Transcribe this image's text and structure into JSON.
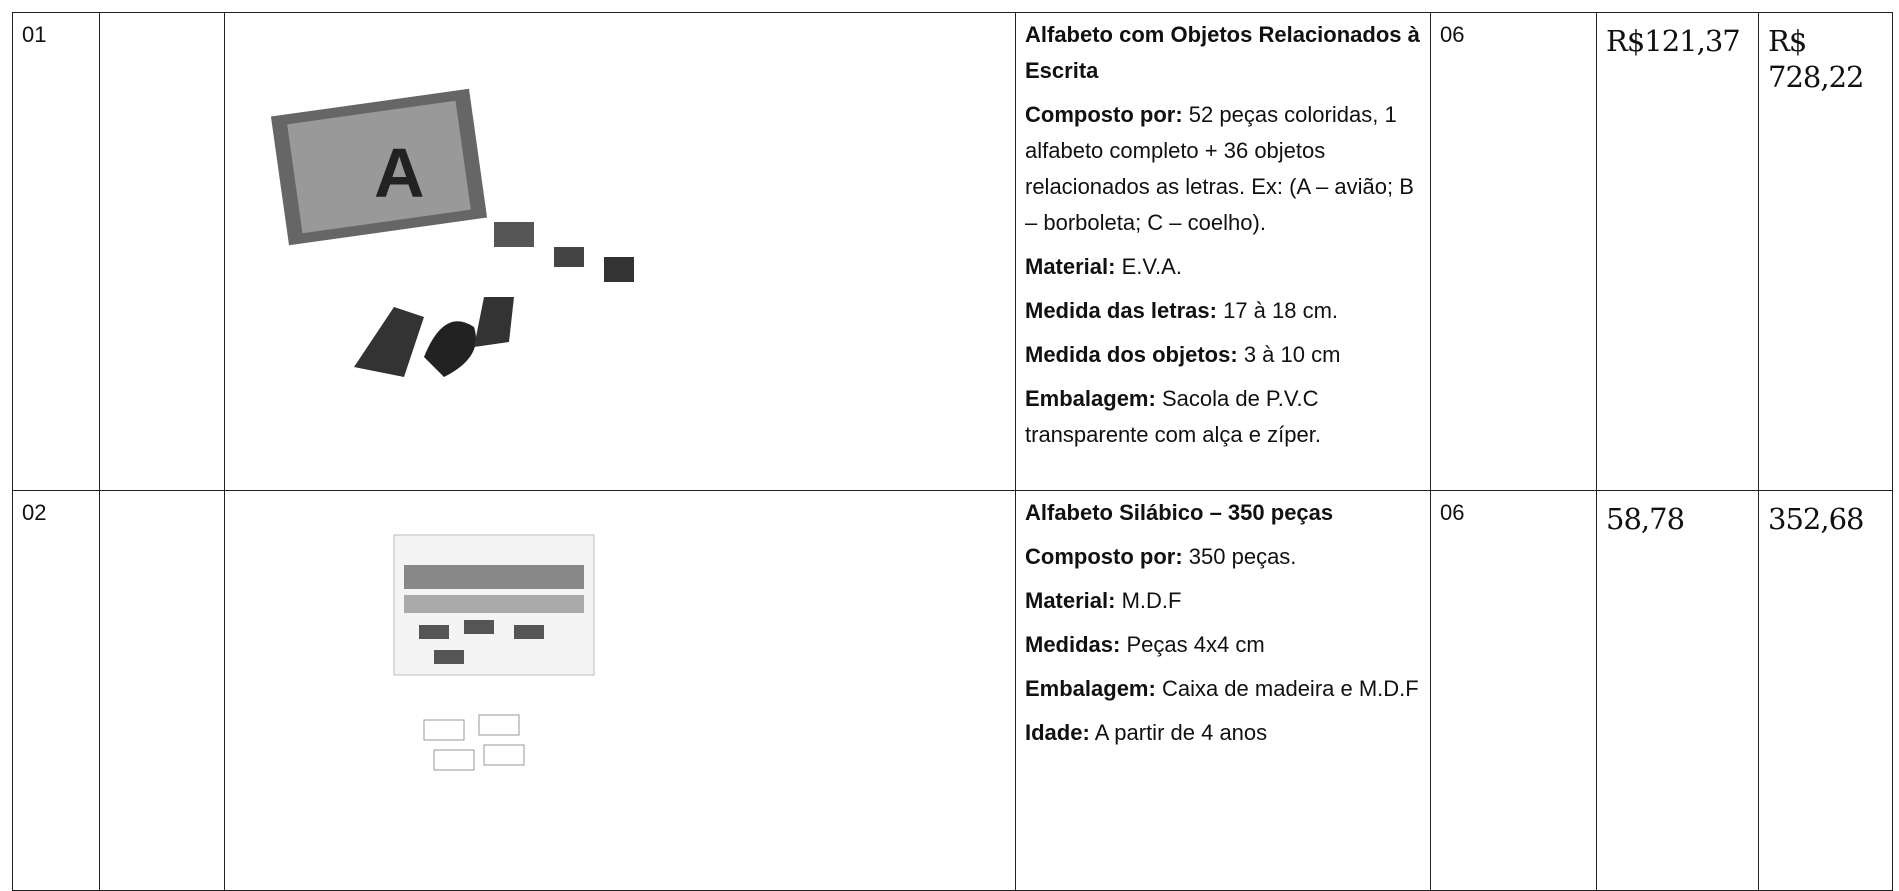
{
  "table": {
    "rows": [
      {
        "item": "01",
        "description": {
          "title": "Alfabeto com Objetos Relacionados à Escrita",
          "fields": [
            {
              "label": "Composto por:",
              "text": "52 peças coloridas, 1 alfabeto completo + 36 objetos relacionados as letras. Ex: (A – avião; B – borboleta; C – coelho)."
            },
            {
              "label": "Material:",
              "text": "E.V.A."
            },
            {
              "label": "Medida das letras:",
              "text": "17 à 18 cm."
            },
            {
              "label": "Medida dos objetos:",
              "text": "3 à 10 cm"
            },
            {
              "label": "Embalagem:",
              "text": "Sacola de P.V.C transparente com alça e zíper."
            }
          ]
        },
        "quantity": "06",
        "unit_price": "R$121,37",
        "total": "R$ 728,22"
      },
      {
        "item": "02",
        "description": {
          "title": "Alfabeto Silábico – 350 peças",
          "fields": [
            {
              "label": "Composto por:",
              "text": "350 peças."
            },
            {
              "label": "Material:",
              "text": "M.D.F"
            },
            {
              "label": "Medidas:",
              "text": "Peças 4x4 cm"
            },
            {
              "label": "Embalagem:",
              "text": "Caixa de madeira e M.D.F"
            },
            {
              "label": "Idade:",
              "text": "A partir de 4 anos"
            }
          ]
        },
        "quantity": "06",
        "unit_price": "58,78",
        "total": "352,68"
      }
    ]
  }
}
